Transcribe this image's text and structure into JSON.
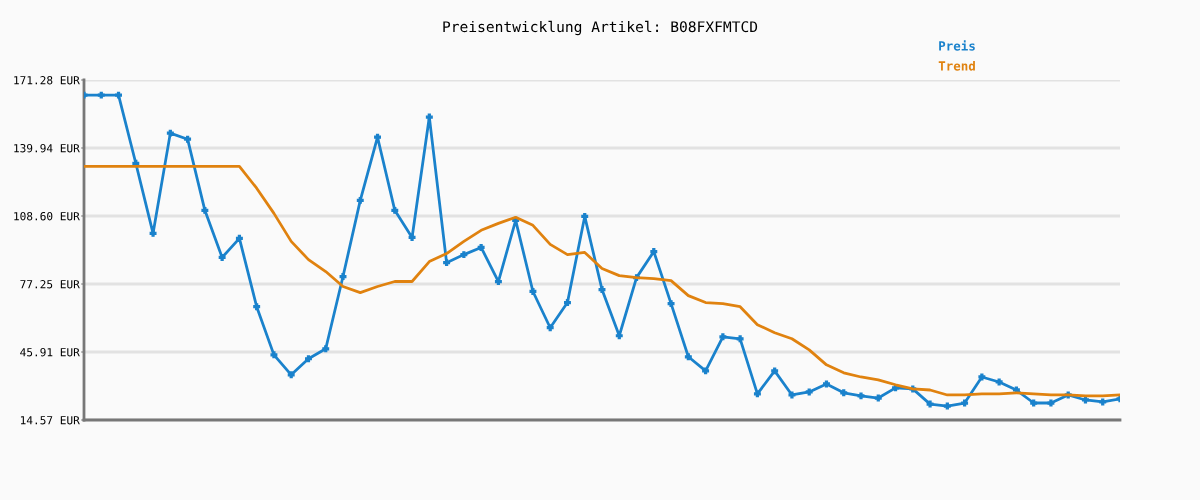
{
  "chart_data": {
    "type": "line",
    "title": "Preisentwicklung Artikel: B08FXFMTCD",
    "categories": [
      null,
      null,
      null,
      null,
      null,
      null,
      null,
      null,
      null,
      null,
      null,
      null,
      null,
      null,
      null,
      null,
      null,
      null,
      null,
      null,
      null,
      null,
      null,
      null,
      null,
      null,
      null,
      null,
      null,
      null,
      null,
      null,
      null,
      null,
      null,
      null,
      null,
      null,
      null,
      null,
      null,
      null,
      null,
      null,
      null,
      null,
      null,
      null,
      null,
      null,
      null,
      null,
      null,
      null,
      null,
      null,
      null,
      null,
      null,
      null,
      null
    ],
    "series": [
      {
        "name": "Preis",
        "color": "#1a82cc",
        "marker": "cross",
        "values": [
          164.3,
          164.3,
          164.3,
          132.9,
          100.6,
          146.8,
          144.0,
          111.2,
          89.5,
          98.3,
          66.8,
          44.6,
          35.4,
          42.8,
          47.4,
          80.7,
          115.8,
          144.9,
          111.2,
          98.7,
          154.2,
          87.1,
          90.8,
          94.1,
          78.4,
          106.6,
          73.8,
          57.1,
          68.7,
          108.4,
          74.7,
          53.4,
          80.2,
          92.2,
          68.2,
          43.7,
          37.2,
          52.9,
          52.0,
          26.6,
          37.2,
          26.1,
          27.5,
          31.2,
          27.1,
          25.7,
          24.7,
          29.4,
          28.9,
          21.9,
          21.0,
          22.4,
          34.4,
          32.1,
          28.4,
          22.4,
          22.4,
          26.1,
          23.8,
          22.9,
          24.3
        ]
      },
      {
        "name": "Trend",
        "color": "#e0820f",
        "marker": "none",
        "values": [
          131.5,
          131.5,
          131.5,
          131.5,
          131.5,
          131.5,
          131.5,
          131.5,
          131.5,
          131.5,
          121.4,
          109.8,
          96.9,
          88.5,
          83.0,
          76.1,
          73.3,
          76.1,
          78.4,
          78.4,
          87.6,
          91.3,
          96.9,
          102.0,
          105.2,
          108.0,
          104.3,
          95.5,
          90.8,
          91.8,
          84.4,
          81.1,
          80.2,
          79.7,
          78.8,
          71.9,
          68.7,
          68.2,
          66.8,
          58.5,
          54.8,
          52.0,
          46.9,
          40.0,
          36.3,
          34.4,
          33.1,
          30.8,
          28.9,
          28.4,
          26.1,
          26.1,
          26.6,
          26.6,
          27.1,
          26.6,
          26.1,
          26.1,
          25.7,
          25.7,
          26.1
        ]
      }
    ],
    "ylim": [
      14.57,
      171.28
    ],
    "yticks": [
      {
        "value": 14.57,
        "label": "14.57 EUR"
      },
      {
        "value": 45.91,
        "label": "45.91 EUR"
      },
      {
        "value": 77.25,
        "label": "77.25 EUR"
      },
      {
        "value": 108.6,
        "label": "108.60 EUR"
      },
      {
        "value": 139.94,
        "label": "139.94 EUR"
      },
      {
        "value": 171.28,
        "label": "171.28 EUR"
      }
    ],
    "grid": "y",
    "legend": "top right",
    "tick_labels": "y"
  }
}
